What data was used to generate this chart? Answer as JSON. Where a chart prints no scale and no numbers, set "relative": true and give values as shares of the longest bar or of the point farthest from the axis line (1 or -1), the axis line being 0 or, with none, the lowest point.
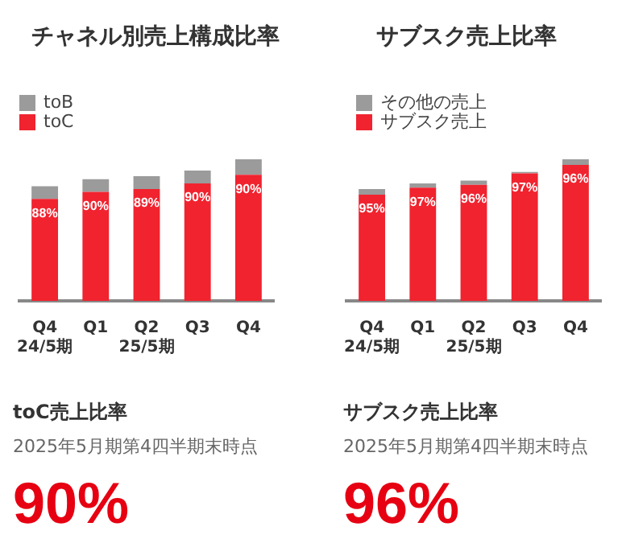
{
  "chart_data": [
    {
      "type": "bar",
      "title": "チャネル別売上構成比率",
      "categories": [
        "Q4\n24/5期",
        "Q1",
        "Q2\n25/5期",
        "Q3",
        "Q4"
      ],
      "stacked": true,
      "relative": true,
      "legend": "top left",
      "annotations": [
        "88%",
        "90%",
        "89%",
        "90%",
        "90%"
      ],
      "series": [
        {
          "name": "toC",
          "color": "#f0232f",
          "values": [
            0.72,
            0.77,
            0.79,
            0.83,
            0.89
          ]
        },
        {
          "name": "toB",
          "color": "#9b9b9b",
          "values": [
            0.09,
            0.09,
            0.09,
            0.09,
            0.11
          ]
        }
      ]
    },
    {
      "type": "bar",
      "title": "サブスク売上比率",
      "categories": [
        "Q4\n24/5期",
        "Q1",
        "Q2\n25/5期",
        "Q3",
        "Q4"
      ],
      "stacked": true,
      "relative": true,
      "legend": "top left",
      "annotations": [
        "95%",
        "97%",
        "96%",
        "97%",
        "96%"
      ],
      "series": [
        {
          "name": "サブスク売上",
          "color": "#f0232f",
          "values": [
            0.75,
            0.8,
            0.82,
            0.9,
            0.96
          ]
        },
        {
          "name": "その他の売上",
          "color": "#9b9b9b",
          "values": [
            0.04,
            0.03,
            0.03,
            0.01,
            0.04
          ]
        }
      ]
    },
    {
      "type": "other",
      "title": "toC売上比率",
      "subtitle": "2025年5月期第4四半期末時点",
      "annotations": [
        "90%"
      ]
    },
    {
      "type": "other",
      "title": "サブスク売上比率",
      "subtitle": "2025年5月期第4四半期末時点",
      "annotations": [
        "96%"
      ]
    }
  ]
}
